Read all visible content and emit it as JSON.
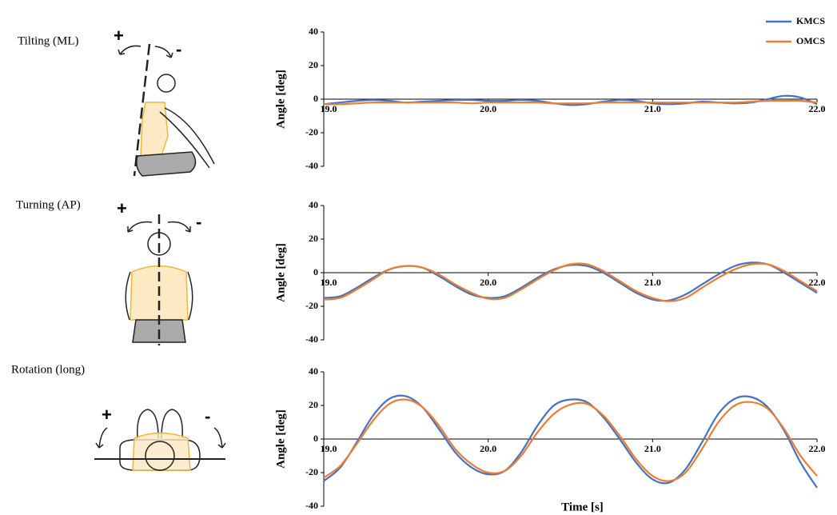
{
  "chart_data": [
    {
      "type": "line",
      "title": "Tilting (ML)",
      "annotations": [
        "+",
        "-"
      ],
      "ylabel": "Angle [deg]",
      "x": [
        19.0,
        19.1,
        19.2,
        19.3,
        19.4,
        19.5,
        19.6,
        19.7,
        19.8,
        19.9,
        20.0,
        20.1,
        20.2,
        20.3,
        20.4,
        20.5,
        20.6,
        20.7,
        20.8,
        20.9,
        21.0,
        21.1,
        21.2,
        21.3,
        21.4,
        21.5,
        21.6,
        21.7,
        21.8,
        21.9,
        22.0
      ],
      "xlim": [
        19,
        22
      ],
      "xticks": [
        {
          "value": 19,
          "label": "19.0"
        },
        {
          "value": 20,
          "label": "20.0"
        },
        {
          "value": 21,
          "label": "21.0"
        },
        {
          "value": 22,
          "label": "22.0"
        }
      ],
      "ylim": [
        -40,
        40
      ],
      "yticks": [
        40,
        20,
        0,
        -20,
        -40
      ],
      "series": [
        {
          "name": "KMCS",
          "color": "#4472c4",
          "values": [
            -3,
            -2,
            -1,
            -0.5,
            -1,
            -2,
            -1.5,
            -1,
            -0.5,
            -0.5,
            -1,
            -1,
            -0.5,
            -1,
            -2.5,
            -3.5,
            -3,
            -1.5,
            -0.5,
            -1,
            -2.5,
            -3,
            -2.5,
            -1.5,
            -2,
            -2.5,
            -2,
            0,
            2,
            1,
            -3
          ]
        },
        {
          "name": "OMCS",
          "color": "#ed7d31",
          "values": [
            -3,
            -3,
            -2.5,
            -2,
            -2,
            -2,
            -2,
            -2,
            -2,
            -2.5,
            -2,
            -2,
            -2,
            -2,
            -2.5,
            -2.5,
            -2.5,
            -2,
            -2,
            -2,
            -2,
            -2,
            -2,
            -2,
            -2,
            -2,
            -1.5,
            -1,
            -1,
            -1,
            -2
          ]
        }
      ]
    },
    {
      "type": "line",
      "title": "Turning (AP)",
      "annotations": [
        "+",
        "-"
      ],
      "ylabel": "Angle [deg]",
      "x": [
        19.0,
        19.1,
        19.2,
        19.3,
        19.4,
        19.5,
        19.6,
        19.7,
        19.8,
        19.9,
        20.0,
        20.1,
        20.2,
        20.3,
        20.4,
        20.5,
        20.6,
        20.7,
        20.8,
        20.9,
        21.0,
        21.1,
        21.2,
        21.3,
        21.4,
        21.5,
        21.6,
        21.7,
        21.8,
        21.9,
        22.0
      ],
      "xlim": [
        19,
        22
      ],
      "xticks": [
        {
          "value": 19,
          "label": "19.0"
        },
        {
          "value": 20,
          "label": "20.0"
        },
        {
          "value": 21,
          "label": "21.0"
        },
        {
          "value": 22,
          "label": "22.0"
        }
      ],
      "ylim": [
        -40,
        40
      ],
      "yticks": [
        40,
        20,
        0,
        -20,
        -40
      ],
      "series": [
        {
          "color": "#4472c4",
          "values": [
            -15,
            -14,
            -9,
            -3,
            2,
            4,
            3,
            -2,
            -8,
            -13,
            -15,
            -14,
            -9,
            -3,
            2,
            4.5,
            4,
            0,
            -6,
            -12,
            -16,
            -16.5,
            -13,
            -7,
            -1,
            4,
            6,
            5,
            0,
            -6,
            -12
          ]
        },
        {
          "color": "#ed7d31",
          "values": [
            -16,
            -15,
            -10,
            -4,
            2,
            4,
            3,
            -1,
            -7,
            -12,
            -15.5,
            -15,
            -10,
            -4,
            1.5,
            5,
            5,
            1,
            -5,
            -11,
            -15,
            -17,
            -15,
            -9,
            -3,
            2,
            5,
            5,
            1,
            -5,
            -11
          ]
        }
      ]
    },
    {
      "type": "line",
      "title": "Rotation (long)",
      "annotations": [
        "+",
        "-"
      ],
      "ylabel": "Angle [deg]",
      "xlabel": "Time [s]",
      "x": [
        19.0,
        19.1,
        19.2,
        19.3,
        19.4,
        19.5,
        19.6,
        19.7,
        19.8,
        19.9,
        20.0,
        20.1,
        20.2,
        20.3,
        20.4,
        20.5,
        20.6,
        20.7,
        20.8,
        20.9,
        21.0,
        21.1,
        21.2,
        21.3,
        21.4,
        21.5,
        21.6,
        21.7,
        21.8,
        21.9,
        22.0
      ],
      "xlim": [
        19,
        22
      ],
      "xticks": [
        {
          "value": 19,
          "label": "19.0"
        },
        {
          "value": 20,
          "label": "20.0"
        },
        {
          "value": 21,
          "label": "21.0"
        },
        {
          "value": 22,
          "label": "22.0"
        }
      ],
      "ylim": [
        -40,
        40
      ],
      "yticks": [
        40,
        20,
        0,
        -20,
        -40
      ],
      "series": [
        {
          "color": "#4472c4",
          "values": [
            -25,
            -17,
            -2,
            14,
            24,
            25.5,
            19,
            6,
            -8,
            -17,
            -21,
            -19,
            -8,
            8,
            20,
            23.5,
            22,
            13,
            0,
            -14,
            -24,
            -26,
            -18,
            -2,
            15,
            24,
            25,
            19,
            5,
            -14,
            -29
          ]
        },
        {
          "color": "#ed7d31",
          "values": [
            -23,
            -16,
            -3,
            11,
            21,
            23.5,
            19,
            8,
            -6,
            -15,
            -20,
            -19,
            -10,
            4,
            15,
            20.5,
            21,
            14,
            2,
            -12,
            -22,
            -25,
            -20,
            -6,
            10,
            20,
            22,
            18,
            6,
            -10,
            -22
          ]
        }
      ]
    }
  ]
}
